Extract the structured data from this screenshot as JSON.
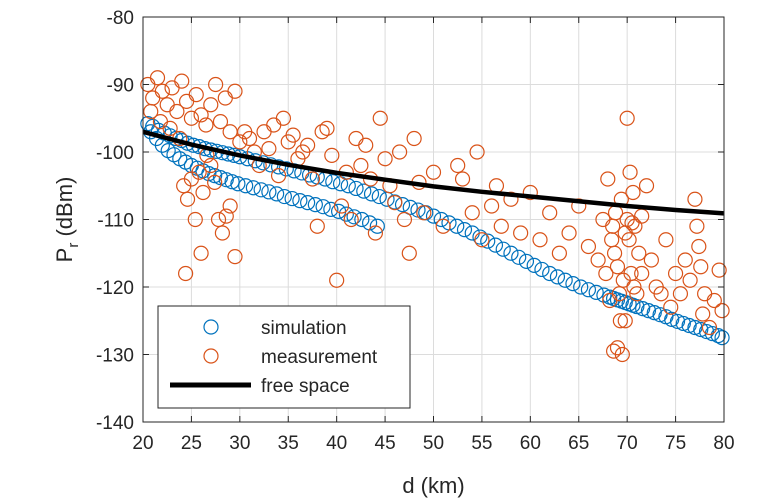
{
  "chart_data": {
    "type": "scatter",
    "xlabel": "d (km)",
    "ylabel": {
      "main": "P",
      "sub": "r",
      "unit": " (dBm)"
    },
    "xlim": [
      20,
      80
    ],
    "ylim": [
      -140,
      -80
    ],
    "x_ticks": [
      20,
      25,
      30,
      35,
      40,
      45,
      50,
      55,
      60,
      65,
      70,
      75,
      80
    ],
    "y_ticks": [
      -140,
      -130,
      -120,
      -110,
      -100,
      -90,
      -80
    ],
    "x_tick_labels": [
      "20",
      "25",
      "30",
      "35",
      "40",
      "45",
      "50",
      "55",
      "60",
      "65",
      "70",
      "75",
      "80"
    ],
    "y_tick_labels": [
      "-140",
      "-130",
      "-120",
      "-110",
      "-100",
      "-90",
      "-80"
    ],
    "grid": true,
    "legend_position": "bottom-left",
    "series": [
      {
        "name": "simulation",
        "kind": "scatter",
        "color": "#0072BD",
        "points": [
          [
            20.5,
            -95.8
          ],
          [
            21.0,
            -96.2
          ],
          [
            21.6,
            -96.8
          ],
          [
            22.2,
            -97.2
          ],
          [
            22.8,
            -97.6
          ],
          [
            23.4,
            -98.0
          ],
          [
            24.0,
            -98.3
          ],
          [
            24.6,
            -98.7
          ],
          [
            25.2,
            -99.0
          ],
          [
            25.8,
            -99.2
          ],
          [
            26.4,
            -99.5
          ],
          [
            27.0,
            -99.7
          ],
          [
            27.6,
            -99.9
          ],
          [
            28.2,
            -100.1
          ],
          [
            28.8,
            -100.3
          ],
          [
            29.4,
            -100.5
          ],
          [
            30.0,
            -100.7
          ],
          [
            30.8,
            -101.0
          ],
          [
            31.6,
            -101.3
          ],
          [
            32.4,
            -101.6
          ],
          [
            33.2,
            -101.9
          ],
          [
            34.0,
            -102.2
          ],
          [
            34.8,
            -102.5
          ],
          [
            35.6,
            -102.8
          ],
          [
            36.4,
            -103.1
          ],
          [
            37.2,
            -103.4
          ],
          [
            38.0,
            -103.7
          ],
          [
            38.8,
            -104.0
          ],
          [
            39.6,
            -104.4
          ],
          [
            40.4,
            -104.7
          ],
          [
            41.2,
            -105.0
          ],
          [
            42.0,
            -105.4
          ],
          [
            42.8,
            -105.8
          ],
          [
            43.6,
            -106.2
          ],
          [
            44.4,
            -106.6
          ],
          [
            45.2,
            -107.0
          ],
          [
            46.0,
            -107.4
          ],
          [
            46.8,
            -107.8
          ],
          [
            47.6,
            -108.2
          ],
          [
            48.4,
            -108.6
          ],
          [
            49.2,
            -109.0
          ],
          [
            50.0,
            -109.5
          ],
          [
            50.8,
            -110.0
          ],
          [
            51.6,
            -110.5
          ],
          [
            52.4,
            -111.0
          ],
          [
            53.2,
            -111.5
          ],
          [
            54.0,
            -112.0
          ],
          [
            54.8,
            -112.6
          ],
          [
            55.6,
            -113.2
          ],
          [
            56.4,
            -113.8
          ],
          [
            57.2,
            -114.4
          ],
          [
            58.0,
            -115.0
          ],
          [
            58.8,
            -115.6
          ],
          [
            59.6,
            -116.2
          ],
          [
            60.4,
            -116.8
          ],
          [
            61.2,
            -117.4
          ],
          [
            62.0,
            -118.0
          ],
          [
            62.8,
            -118.5
          ],
          [
            63.6,
            -119.0
          ],
          [
            64.4,
            -119.5
          ],
          [
            65.2,
            -120.0
          ],
          [
            66.0,
            -120.4
          ],
          [
            66.8,
            -120.8
          ],
          [
            67.6,
            -121.2
          ],
          [
            68.2,
            -121.5
          ],
          [
            68.6,
            -121.7
          ],
          [
            69.0,
            -121.9
          ],
          [
            69.4,
            -122.1
          ],
          [
            69.8,
            -122.3
          ],
          [
            70.2,
            -122.5
          ],
          [
            70.6,
            -122.7
          ],
          [
            71.0,
            -122.9
          ],
          [
            71.6,
            -123.2
          ],
          [
            72.2,
            -123.5
          ],
          [
            72.8,
            -123.8
          ],
          [
            73.4,
            -124.1
          ],
          [
            74.0,
            -124.4
          ],
          [
            74.6,
            -124.8
          ],
          [
            75.2,
            -125.1
          ],
          [
            75.8,
            -125.4
          ],
          [
            76.4,
            -125.7
          ],
          [
            77.0,
            -126.0
          ],
          [
            77.6,
            -126.3
          ],
          [
            78.2,
            -126.6
          ],
          [
            78.8,
            -126.9
          ],
          [
            79.4,
            -127.2
          ],
          [
            79.8,
            -127.5
          ],
          [
            20.8,
            -97.0
          ],
          [
            21.4,
            -98.0
          ],
          [
            22.0,
            -99.0
          ],
          [
            22.6,
            -99.8
          ],
          [
            23.2,
            -100.4
          ],
          [
            23.8,
            -101.0
          ],
          [
            24.4,
            -101.5
          ],
          [
            25.0,
            -102.0
          ],
          [
            25.6,
            -102.4
          ],
          [
            26.2,
            -102.8
          ],
          [
            26.8,
            -103.2
          ],
          [
            27.4,
            -103.5
          ],
          [
            28.0,
            -103.8
          ],
          [
            28.6,
            -104.1
          ],
          [
            29.2,
            -104.4
          ],
          [
            29.8,
            -104.7
          ],
          [
            30.6,
            -105.0
          ],
          [
            31.4,
            -105.3
          ],
          [
            32.2,
            -105.6
          ],
          [
            33.0,
            -105.9
          ],
          [
            33.8,
            -106.2
          ],
          [
            34.6,
            -106.6
          ],
          [
            35.4,
            -106.9
          ],
          [
            36.2,
            -107.2
          ],
          [
            37.0,
            -107.5
          ],
          [
            37.8,
            -107.8
          ],
          [
            38.6,
            -108.1
          ],
          [
            39.4,
            -108.5
          ],
          [
            40.2,
            -108.8
          ],
          [
            41.0,
            -109.2
          ],
          [
            41.8,
            -109.6
          ],
          [
            42.6,
            -110.0
          ],
          [
            43.4,
            -110.5
          ],
          [
            44.2,
            -111.0
          ]
        ]
      },
      {
        "name": "measurement",
        "kind": "scatter",
        "color": "#D95319",
        "points": [
          [
            20.5,
            -90.0
          ],
          [
            21.0,
            -92.0
          ],
          [
            21.5,
            -89.0
          ],
          [
            22.0,
            -91.0
          ],
          [
            22.5,
            -93.0
          ],
          [
            23.0,
            -90.5
          ],
          [
            23.5,
            -94.0
          ],
          [
            24.0,
            -89.5
          ],
          [
            24.5,
            -92.5
          ],
          [
            25.0,
            -95.0
          ],
          [
            25.5,
            -91.5
          ],
          [
            26.0,
            -94.5
          ],
          [
            26.5,
            -96.0
          ],
          [
            27.0,
            -93.0
          ],
          [
            27.5,
            -90.0
          ],
          [
            28.0,
            -95.5
          ],
          [
            28.5,
            -92.0
          ],
          [
            29.0,
            -97.0
          ],
          [
            29.5,
            -91.0
          ],
          [
            30.0,
            -98.5
          ],
          [
            20.8,
            -94.0
          ],
          [
            21.8,
            -95.5
          ],
          [
            22.8,
            -96.5
          ],
          [
            23.8,
            -98.0
          ],
          [
            24.2,
            -105.0
          ],
          [
            24.6,
            -107.0
          ],
          [
            25.0,
            -104.0
          ],
          [
            25.4,
            -110.0
          ],
          [
            25.8,
            -103.0
          ],
          [
            26.2,
            -106.0
          ],
          [
            26.6,
            -100.5
          ],
          [
            27.0,
            -102.0
          ],
          [
            27.4,
            -104.5
          ],
          [
            27.8,
            -110.0
          ],
          [
            28.2,
            -112.0
          ],
          [
            28.6,
            -109.5
          ],
          [
            29.0,
            -108.0
          ],
          [
            24.4,
            -118.0
          ],
          [
            26.0,
            -115.0
          ],
          [
            29.5,
            -115.5
          ],
          [
            30.5,
            -97.0
          ],
          [
            31.0,
            -98.0
          ],
          [
            31.5,
            -100.0
          ],
          [
            32.0,
            -102.0
          ],
          [
            32.5,
            -97.0
          ],
          [
            33.0,
            -99.5
          ],
          [
            33.5,
            -96.0
          ],
          [
            34.0,
            -103.5
          ],
          [
            34.5,
            -95.0
          ],
          [
            35.0,
            -98.5
          ],
          [
            35.5,
            -97.5
          ],
          [
            36.0,
            -101.0
          ],
          [
            36.5,
            -100.0
          ],
          [
            37.0,
            -99.0
          ],
          [
            37.5,
            -104.0
          ],
          [
            38.0,
            -111.0
          ],
          [
            38.5,
            -97.0
          ],
          [
            39.0,
            -96.5
          ],
          [
            39.5,
            -100.5
          ],
          [
            40.0,
            -119.0
          ],
          [
            40.5,
            -108.0
          ],
          [
            41.0,
            -103.0
          ],
          [
            41.5,
            -110.0
          ],
          [
            42.0,
            -98.0
          ],
          [
            42.5,
            -102.0
          ],
          [
            43.0,
            -99.0
          ],
          [
            43.5,
            -104.0
          ],
          [
            44.0,
            -112.0
          ],
          [
            44.5,
            -95.0
          ],
          [
            45.0,
            -101.0
          ],
          [
            45.5,
            -105.0
          ],
          [
            46.0,
            -107.5
          ],
          [
            46.5,
            -100.0
          ],
          [
            47.0,
            -110.0
          ],
          [
            47.5,
            -115.0
          ],
          [
            48.0,
            -98.0
          ],
          [
            48.5,
            -104.5
          ],
          [
            49.0,
            -109.0
          ],
          [
            50.0,
            -103.0
          ],
          [
            51.0,
            -111.0
          ],
          [
            52.5,
            -102.0
          ],
          [
            53.0,
            -104.0
          ],
          [
            54.0,
            -109.0
          ],
          [
            54.5,
            -100.0
          ],
          [
            55.0,
            -113.0
          ],
          [
            56.0,
            -108.0
          ],
          [
            56.5,
            -105.0
          ],
          [
            57.0,
            -111.0
          ],
          [
            58.0,
            -107.0
          ],
          [
            59.0,
            -112.0
          ],
          [
            60.0,
            -106.0
          ],
          [
            61.0,
            -113.0
          ],
          [
            62.0,
            -109.0
          ],
          [
            63.0,
            -115.0
          ],
          [
            64.0,
            -112.0
          ],
          [
            65.0,
            -108.0
          ],
          [
            66.0,
            -114.0
          ],
          [
            67.0,
            -116.0
          ],
          [
            67.5,
            -110.0
          ],
          [
            67.8,
            -118.0
          ],
          [
            68.0,
            -104.0
          ],
          [
            68.2,
            -122.0
          ],
          [
            68.4,
            -113.0
          ],
          [
            68.6,
            -129.5
          ],
          [
            68.8,
            -109.0
          ],
          [
            69.0,
            -117.0
          ],
          [
            69.2,
            -121.0
          ],
          [
            69.4,
            -107.0
          ],
          [
            69.6,
            -119.0
          ],
          [
            69.8,
            -125.0
          ],
          [
            70.0,
            -110.0
          ],
          [
            70.0,
            -95.0
          ],
          [
            70.2,
            -113.0
          ],
          [
            70.4,
            -118.0
          ],
          [
            70.6,
            -106.0
          ],
          [
            70.8,
            -111.0
          ],
          [
            71.0,
            -121.0
          ],
          [
            71.2,
            -115.0
          ],
          [
            71.5,
            -118.0
          ],
          [
            72.0,
            -105.0
          ],
          [
            72.5,
            -116.0
          ],
          [
            73.0,
            -120.0
          ],
          [
            73.5,
            -121.0
          ],
          [
            74.0,
            -113.0
          ],
          [
            74.5,
            -123.0
          ],
          [
            75.0,
            -118.0
          ],
          [
            75.5,
            -121.0
          ],
          [
            76.0,
            -116.0
          ],
          [
            76.5,
            -119.0
          ],
          [
            77.0,
            -107.0
          ],
          [
            77.2,
            -111.0
          ],
          [
            77.4,
            -114.0
          ],
          [
            77.6,
            -117.0
          ],
          [
            77.8,
            -124.0
          ],
          [
            78.0,
            -121.0
          ],
          [
            78.5,
            -126.0
          ],
          [
            79.0,
            -122.0
          ],
          [
            79.5,
            -117.5
          ],
          [
            79.8,
            -123.5
          ],
          [
            69.5,
            -130.0
          ],
          [
            69.0,
            -129.0
          ],
          [
            70.5,
            -110.5
          ],
          [
            69.8,
            -112.0
          ],
          [
            68.5,
            -111.0
          ],
          [
            71.5,
            -109.5
          ],
          [
            70.3,
            -103.0
          ],
          [
            68.7,
            -115.0
          ],
          [
            69.3,
            -125.0
          ],
          [
            70.7,
            -120.0
          ]
        ]
      },
      {
        "name": "free space",
        "kind": "line",
        "color": "#000000",
        "points": [
          [
            20,
            -97.0
          ],
          [
            25,
            -98.9
          ],
          [
            30,
            -100.5
          ],
          [
            35,
            -101.9
          ],
          [
            40,
            -103.1
          ],
          [
            45,
            -104.1
          ],
          [
            50,
            -105.1
          ],
          [
            55,
            -105.9
          ],
          [
            60,
            -106.6
          ],
          [
            65,
            -107.3
          ],
          [
            70,
            -108.0
          ],
          [
            75,
            -108.6
          ],
          [
            80,
            -109.1
          ]
        ]
      }
    ]
  }
}
